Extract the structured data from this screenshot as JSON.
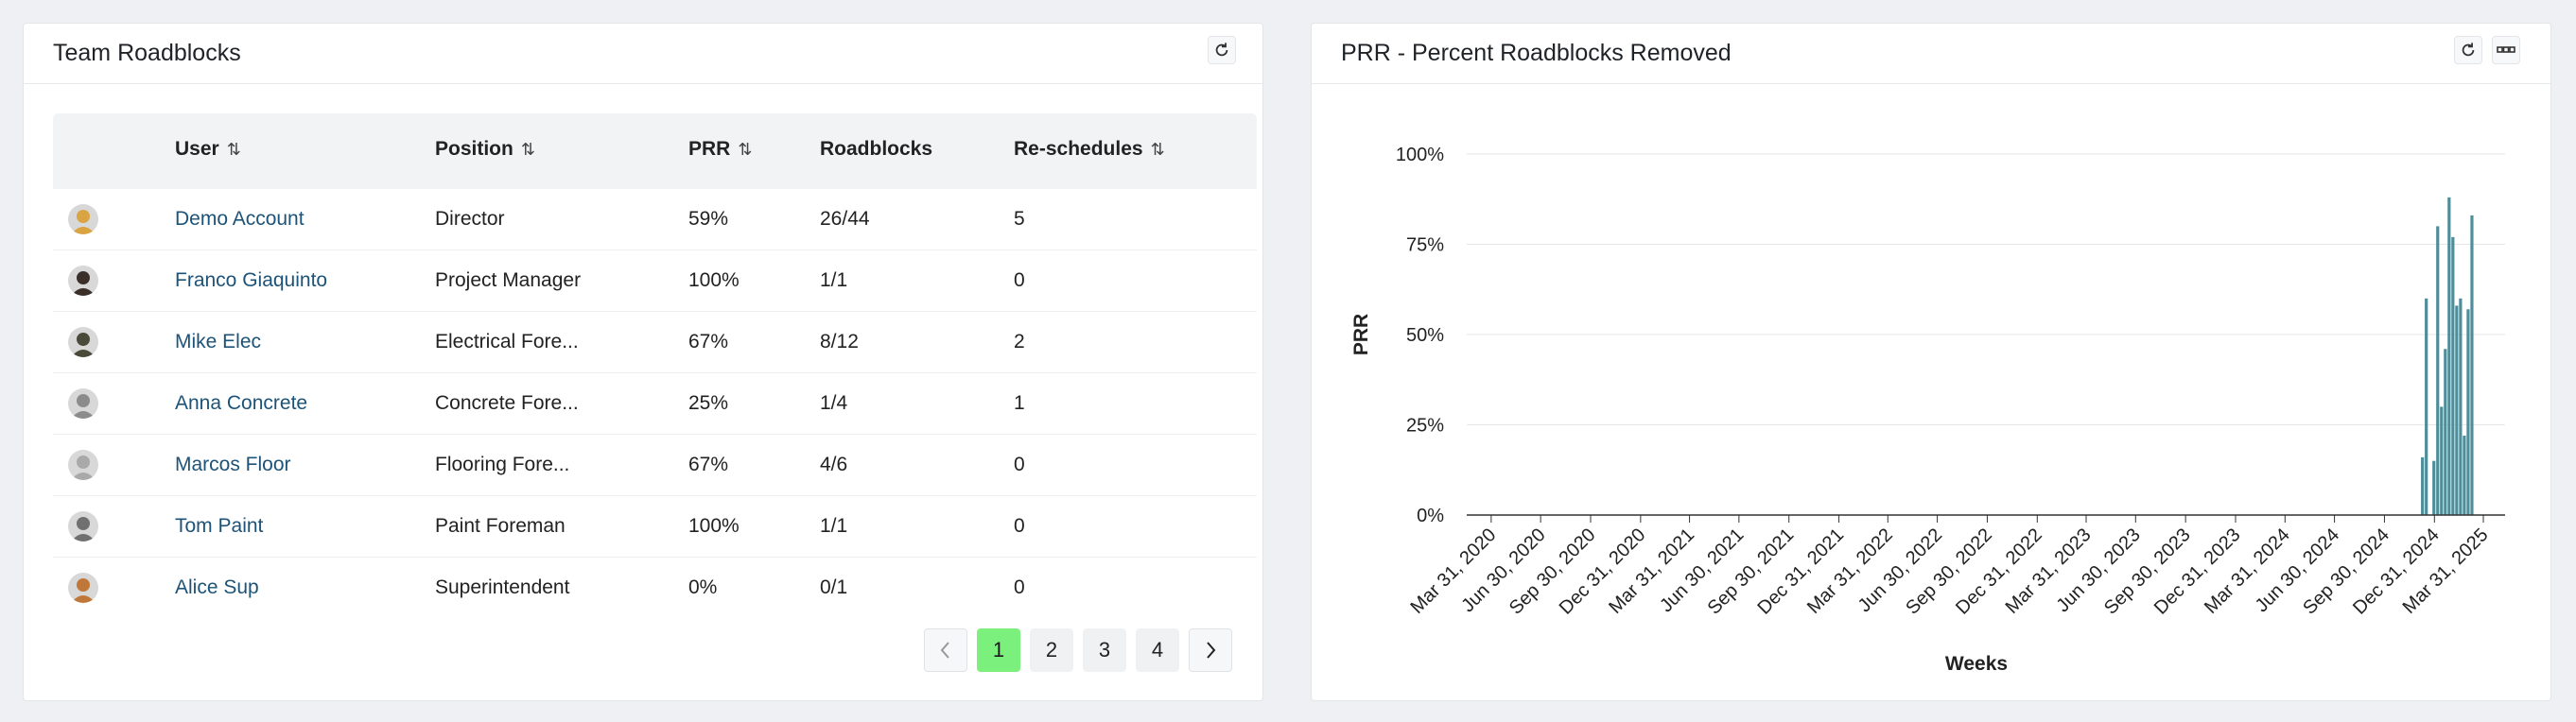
{
  "left_panel": {
    "title": "Team Roadblocks",
    "columns": [
      "User",
      "Position",
      "PRR",
      "Roadblocks",
      "Re-schedules"
    ],
    "rows": [
      {
        "user": "Demo Account",
        "position": "Director",
        "prr": "59%",
        "roadblocks": "26/44",
        "reschedules": "5",
        "avatar_color": "#d9a441"
      },
      {
        "user": "Franco Giaquinto",
        "position": "Project Manager",
        "prr": "100%",
        "roadblocks": "1/1",
        "reschedules": "0",
        "avatar_color": "#3b2f2a"
      },
      {
        "user": "Mike Elec",
        "position": "Electrical Fore...",
        "prr": "67%",
        "roadblocks": "8/12",
        "reschedules": "2",
        "avatar_color": "#4a4a3a"
      },
      {
        "user": "Anna Concrete",
        "position": "Concrete Fore...",
        "prr": "25%",
        "roadblocks": "1/4",
        "reschedules": "1",
        "avatar_color": "#8c8c8c"
      },
      {
        "user": "Marcos Floor",
        "position": "Flooring Fore...",
        "prr": "67%",
        "roadblocks": "4/6",
        "reschedules": "0",
        "avatar_color": "#a9a9a9"
      },
      {
        "user": "Tom Paint",
        "position": "Paint Foreman",
        "prr": "100%",
        "roadblocks": "1/1",
        "reschedules": "0",
        "avatar_color": "#707070"
      },
      {
        "user": "Alice Sup",
        "position": "Superintendent",
        "prr": "0%",
        "roadblocks": "0/1",
        "reschedules": "0",
        "avatar_color": "#c0783a"
      }
    ],
    "pagination": {
      "pages": [
        "1",
        "2",
        "3",
        "4"
      ],
      "current": "1"
    }
  },
  "right_panel": {
    "title": "PRR - Percent Roadblocks Removed"
  },
  "colors": {
    "bar": "#4f8d98",
    "active_page": "#7cf07c",
    "link": "#1d5378"
  },
  "chart_data": {
    "type": "bar",
    "title": "",
    "xlabel": "Weeks",
    "ylabel": "PRR",
    "ylim": [
      0,
      100
    ],
    "y_ticks": [
      "0%",
      "25%",
      "50%",
      "75%",
      "100%"
    ],
    "x_tick_labels": [
      "Mar 31, 2020",
      "Jun 30, 2020",
      "Sep 30, 2020",
      "Dec 31, 2020",
      "Mar 31, 2021",
      "Jun 30, 2021",
      "Sep 30, 2021",
      "Dec 31, 2021",
      "Mar 31, 2022",
      "Jun 30, 2022",
      "Sep 30, 2022",
      "Dec 31, 2022",
      "Mar 31, 2023",
      "Jun 30, 2023",
      "Sep 30, 2023",
      "Dec 31, 2023",
      "Mar 31, 2024",
      "Jun 30, 2024",
      "Sep 30, 2024",
      "Dec 31, 2024",
      "Mar 31, 2025"
    ],
    "x_domain": [
      "2020-02-15",
      "2025-05-10"
    ],
    "grid": true,
    "bars": [
      {
        "week": "2024-12-09",
        "value": 16
      },
      {
        "week": "2024-12-16",
        "value": 60
      },
      {
        "week": "2024-12-30",
        "value": 15
      },
      {
        "week": "2025-01-06",
        "value": 80
      },
      {
        "week": "2025-01-13",
        "value": 30
      },
      {
        "week": "2025-01-20",
        "value": 46
      },
      {
        "week": "2025-01-27",
        "value": 88
      },
      {
        "week": "2025-02-03",
        "value": 77
      },
      {
        "week": "2025-02-10",
        "value": 58
      },
      {
        "week": "2025-02-17",
        "value": 60
      },
      {
        "week": "2025-02-24",
        "value": 22
      },
      {
        "week": "2025-03-03",
        "value": 57
      },
      {
        "week": "2025-03-10",
        "value": 83
      }
    ]
  }
}
